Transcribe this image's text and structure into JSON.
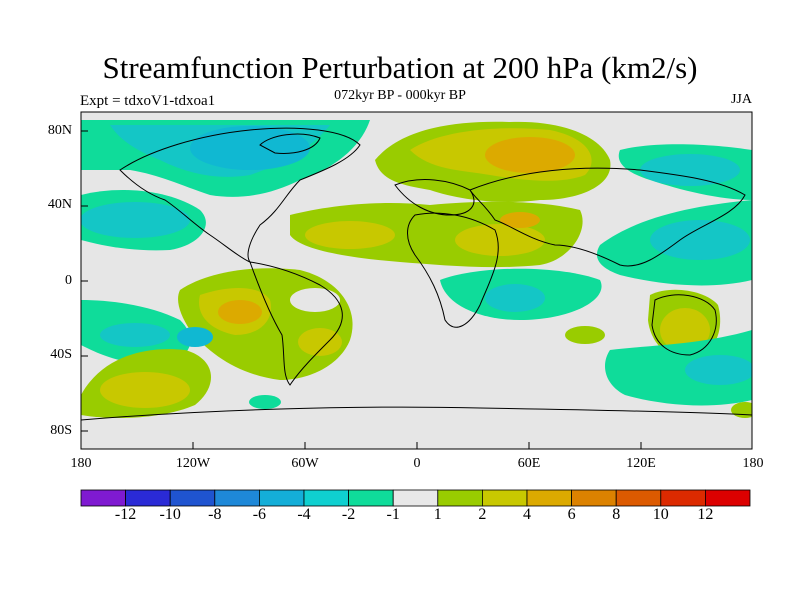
{
  "title": "Streamfunction Perturbation at 200 hPa (km2/s)",
  "subtitle": "072kyr BP - 000kyr BP",
  "left_string": "Expt = tdxoV1-tdxoa1",
  "right_string": "JJA",
  "lat_ticks": [
    "80N",
    "40N",
    "0",
    "40S",
    "80S"
  ],
  "lon_ticks": [
    "180",
    "120W",
    "60W",
    "0",
    "60E",
    "120E",
    "180"
  ],
  "colorbar": {
    "labels": [
      "-12",
      "-10",
      "-8",
      "-6",
      "-4",
      "-2",
      "-1",
      "1",
      "2",
      "4",
      "6",
      "8",
      "10",
      "12"
    ],
    "colors": [
      "#7f1ad1",
      "#2a2ad6",
      "#1f54d0",
      "#1e88d8",
      "#14aed8",
      "#0fd0d0",
      "#0fdc9a",
      "#e8e8e8",
      "#99cc00",
      "#c8c800",
      "#dcaa00",
      "#dc8200",
      "#dc5a00",
      "#dc2a00",
      "#dc0000"
    ]
  }
}
